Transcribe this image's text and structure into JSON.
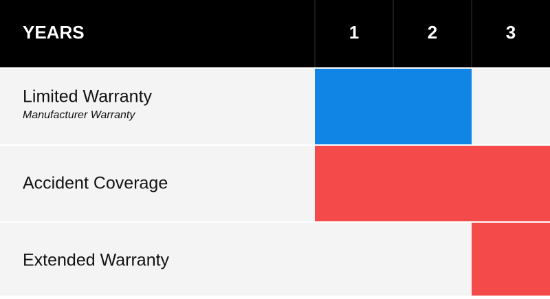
{
  "header": {
    "title": "YEARS",
    "years": [
      "1",
      "2",
      "3"
    ]
  },
  "rows": [
    {
      "label": "Limited Warranty",
      "sublabel": "Manufacturer Warranty",
      "start": 0,
      "end": 2,
      "color": "#1185e6"
    },
    {
      "label": "Accident Coverage",
      "start": 0,
      "end": 3,
      "color": "#f44a4a"
    },
    {
      "label": "Extended Warranty",
      "start": 2,
      "end": 3,
      "color": "#f44a4a"
    }
  ]
}
